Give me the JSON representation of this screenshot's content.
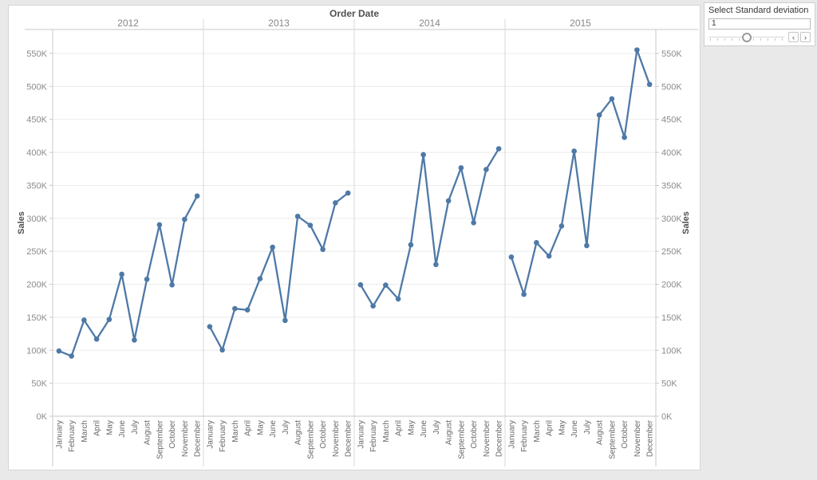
{
  "chart_data": {
    "type": "line",
    "title": "Order Date",
    "ylabel_left": "Sales",
    "ylabel_right": "Sales",
    "value_unit": "K (thousands)",
    "line_color": "#4e79a7",
    "grid": "horizontal",
    "legend_position": "none",
    "ylim": [
      0,
      587
    ],
    "y_tick_step": 50,
    "y_tick_labels": [
      "0K",
      "50K",
      "100K",
      "150K",
      "200K",
      "250K",
      "300K",
      "350K",
      "400K",
      "450K",
      "500K",
      "550K"
    ],
    "categories": [
      "January",
      "February",
      "March",
      "April",
      "May",
      "June",
      "July",
      "August",
      "September",
      "October",
      "November",
      "December"
    ],
    "series": [
      {
        "name": "2012",
        "values": [
          98.9,
          91.2,
          145.7,
          116.9,
          146.7,
          215.2,
          115.5,
          207.6,
          290.2,
          199.1,
          298.5,
          333.9
        ]
      },
      {
        "name": "2013",
        "values": [
          135.8,
          100.5,
          163.1,
          161.1,
          208.4,
          256.2,
          145.2,
          303.1,
          289.4,
          252.9,
          323.5,
          338.3
        ]
      },
      {
        "name": "2014",
        "values": [
          199.2,
          167.2,
          198.8,
          177.8,
          259.8,
          396.5,
          229.9,
          326.5,
          376.6,
          293.4,
          374.0,
          405.5
        ]
      },
      {
        "name": "2015",
        "values": [
          241.3,
          184.8,
          263.1,
          242.8,
          288.4,
          401.8,
          258.7,
          456.6,
          481.2,
          422.8,
          555.3,
          503.1
        ]
      }
    ]
  },
  "parameter": {
    "title": "Select Standard deviation",
    "value": "1",
    "slider_position_pct": 49,
    "decrement_label": "‹",
    "increment_label": "›"
  }
}
